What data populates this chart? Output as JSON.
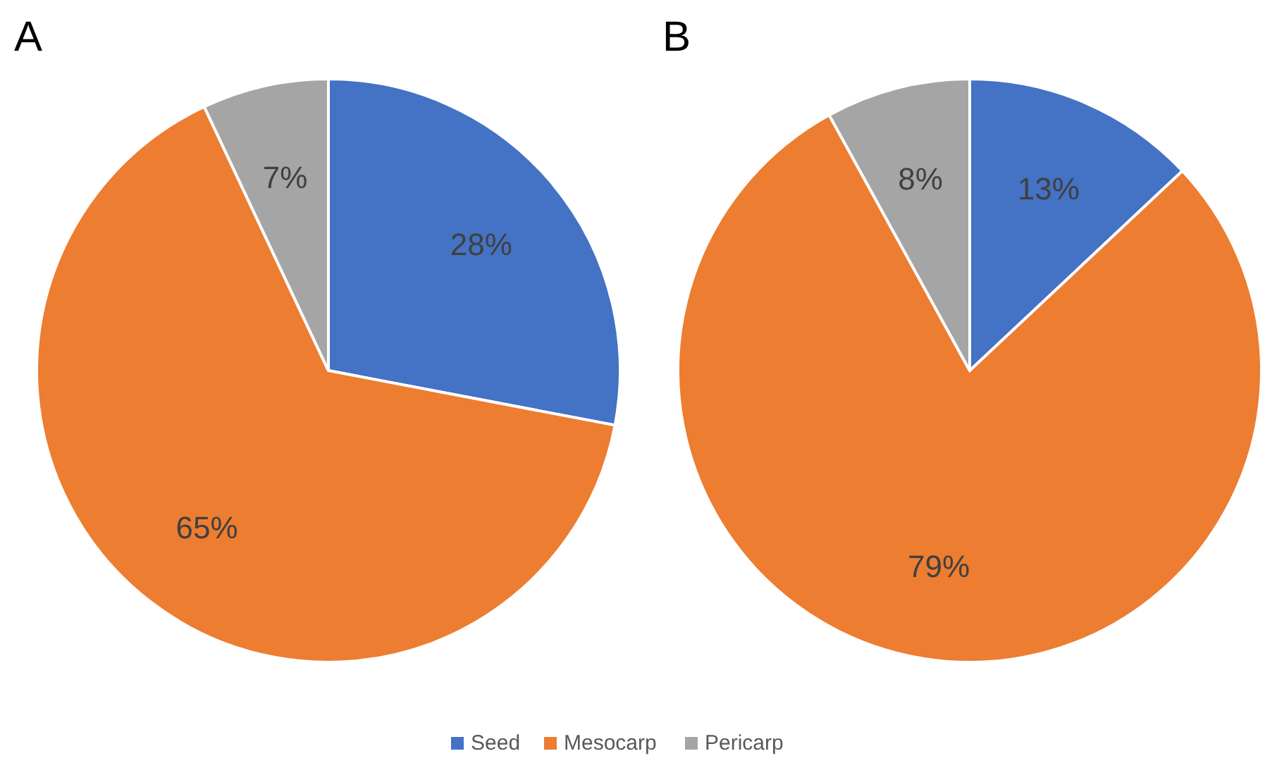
{
  "chart_data": [
    {
      "type": "pie",
      "title": "A",
      "categories": [
        "Seed",
        "Mesocarp",
        "Pericarp"
      ],
      "values": [
        28,
        65,
        7
      ],
      "colors": [
        "#4472c4",
        "#ed7d31",
        "#a5a5a5"
      ],
      "value_labels": [
        "28%",
        "65%",
        "7%"
      ],
      "legend": "bottom"
    },
    {
      "type": "pie",
      "title": "B",
      "categories": [
        null,
        null,
        null
      ],
      "values": [
        13,
        79,
        8
      ],
      "colors": [
        "#4472c4",
        "#ed7d31",
        "#a5a5a5"
      ],
      "value_labels": [
        "13%",
        "79%",
        "8%"
      ]
    }
  ]
}
